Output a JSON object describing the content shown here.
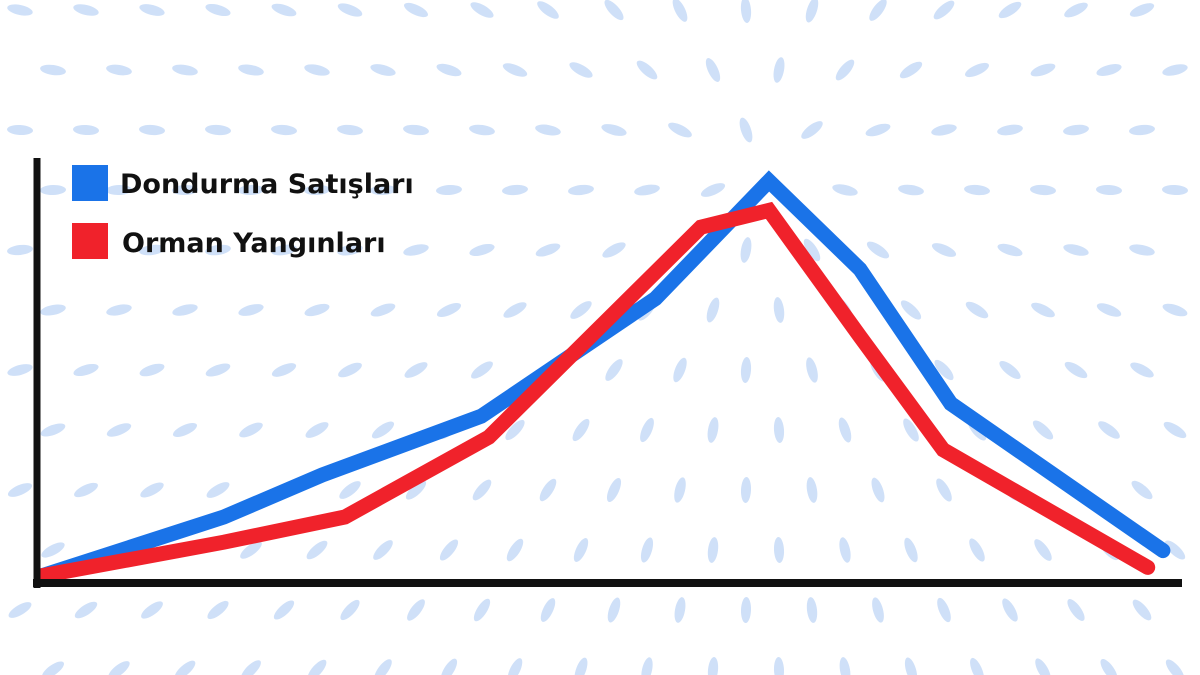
{
  "chart_data": {
    "type": "line",
    "title": "",
    "xlabel": "",
    "ylabel": "",
    "grid": false,
    "axis_ticks": false,
    "legend_position": "top-left",
    "xlim": [
      0,
      15
    ],
    "ylim": [
      0,
      100
    ],
    "background_pattern": "light-blue radial dash pattern",
    "series": [
      {
        "name": "Dondurma Satışları",
        "color": "#1a73e8",
        "points": [
          [
            0,
            1
          ],
          [
            2.4,
            15
          ],
          [
            3.7,
            25
          ],
          [
            5.8,
            39
          ],
          [
            8.1,
            67
          ],
          [
            9.6,
            95
          ],
          [
            10.8,
            74
          ],
          [
            12,
            42
          ],
          [
            14.8,
            7
          ]
        ]
      },
      {
        "name": "Orman Yangınları",
        "color": "#f0222b",
        "points": [
          [
            0,
            1
          ],
          [
            2.4,
            9
          ],
          [
            4,
            15
          ],
          [
            5.9,
            34
          ],
          [
            8.7,
            84
          ],
          [
            9.6,
            88
          ],
          [
            10.8,
            58
          ],
          [
            11.9,
            31
          ],
          [
            14.6,
            3
          ]
        ]
      }
    ]
  },
  "colors": {
    "axis": "#111111",
    "background": "#ffffff",
    "pattern": "#cfe0f8"
  }
}
